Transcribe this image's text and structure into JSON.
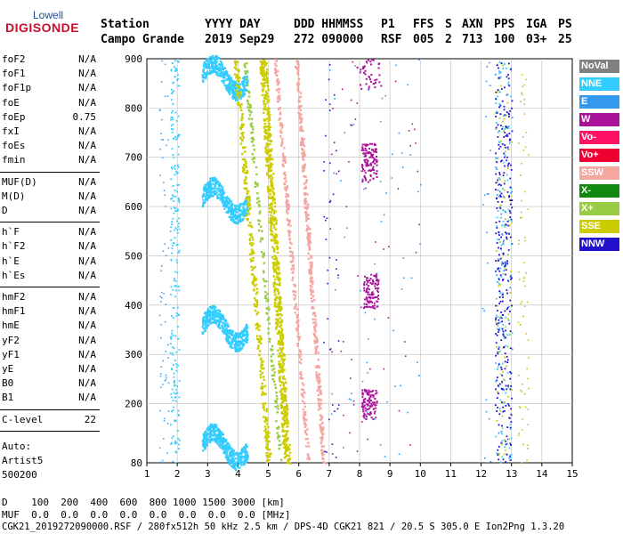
{
  "logo": {
    "top": "Lowell",
    "bottom": "DIGISONDE"
  },
  "header": {
    "row1": [
      {
        "key": "station",
        "text": "Station"
      },
      {
        "key": "date",
        "text": "YYYY DAY"
      },
      {
        "key": "time",
        "text": "DDD HHMMSS"
      },
      {
        "key": "p1",
        "text": "P1"
      },
      {
        "key": "ffs",
        "text": "FFS"
      },
      {
        "key": "s",
        "text": "S"
      },
      {
        "key": "axn",
        "text": "AXN"
      },
      {
        "key": "pps",
        "text": "PPS"
      },
      {
        "key": "iga",
        "text": "IGA"
      },
      {
        "key": "ps",
        "text": "PS"
      }
    ],
    "row2": [
      {
        "key": "station",
        "text": "Campo Grande"
      },
      {
        "key": "date",
        "text": "2019 Sep29"
      },
      {
        "key": "time",
        "text": "272 090000"
      },
      {
        "key": "p1",
        "text": "RSF"
      },
      {
        "key": "ffs",
        "text": "005"
      },
      {
        "key": "s",
        "text": "2"
      },
      {
        "key": "axn",
        "text": "713"
      },
      {
        "key": "pps",
        "text": "100"
      },
      {
        "key": "iga",
        "text": "03+"
      },
      {
        "key": "ps",
        "text": "25"
      }
    ]
  },
  "params": {
    "group1": [
      {
        "label": "foF2",
        "value": "N/A"
      },
      {
        "label": "foF1",
        "value": "N/A"
      },
      {
        "label": "foF1p",
        "value": "N/A"
      },
      {
        "label": "foE",
        "value": "N/A"
      },
      {
        "label": "foEp",
        "value": "0.75"
      },
      {
        "label": "fxI",
        "value": "N/A"
      },
      {
        "label": "foEs",
        "value": "N/A"
      },
      {
        "label": "fmin",
        "value": "N/A"
      }
    ],
    "group2": [
      {
        "label": "MUF(D)",
        "value": "N/A"
      },
      {
        "label": "M(D)",
        "value": "N/A"
      },
      {
        "label": "D",
        "value": "N/A"
      }
    ],
    "group3": [
      {
        "label": "h`F",
        "value": "N/A"
      },
      {
        "label": "h`F2",
        "value": "N/A"
      },
      {
        "label": "h`E",
        "value": "N/A"
      },
      {
        "label": "h`Es",
        "value": "N/A"
      }
    ],
    "group4": [
      {
        "label": "hmF2",
        "value": "N/A"
      },
      {
        "label": "hmF1",
        "value": "N/A"
      },
      {
        "label": "hmE",
        "value": "N/A"
      },
      {
        "label": "yF2",
        "value": "N/A"
      },
      {
        "label": "yF1",
        "value": "N/A"
      },
      {
        "label": "yE",
        "value": "N/A"
      },
      {
        "label": "B0",
        "value": "N/A"
      },
      {
        "label": "B1",
        "value": "N/A"
      }
    ],
    "clevel": {
      "label": "C-level",
      "value": "22"
    },
    "auto": [
      "Auto:",
      "Artist5",
      "500200"
    ]
  },
  "legend": [
    {
      "label": "NoVal",
      "color": "#808080"
    },
    {
      "label": "NNE",
      "color": "#33ccff"
    },
    {
      "label": "E",
      "color": "#3399ee"
    },
    {
      "label": "W",
      "color": "#aa1199"
    },
    {
      "label": "Vo-",
      "color": "#ff1166"
    },
    {
      "label": "Vo+",
      "color": "#ee0033"
    },
    {
      "label": "SSW",
      "color": "#f4a6a0"
    },
    {
      "label": "X-",
      "color": "#118811"
    },
    {
      "label": "X+",
      "color": "#99cc44"
    },
    {
      "label": "SSE",
      "color": "#cccc00"
    },
    {
      "label": "NNW",
      "color": "#2211cc"
    }
  ],
  "axes": {
    "x_ticks": [
      "1",
      "2",
      "3",
      "4",
      "5",
      "6",
      "7",
      "8",
      "9",
      "10",
      "11",
      "12",
      "13",
      "14",
      "15"
    ],
    "y_ticks": [
      "80",
      "200",
      "300",
      "400",
      "500",
      "600",
      "700",
      "800",
      "900"
    ]
  },
  "footer": {
    "line1": "D    100  200  400  600  800 1000 1500 3000 [km]",
    "line2": "MUF  0.0  0.0  0.0  0.0  0.0  0.0  0.0  0.0 [MHz]",
    "line3": "CGK21_2019272090000.RSF / 280fx512h 50 kHz 2.5 km / DPS-4D CGK21 821 / 20.5 S 305.0 E Ion2Png 1.3.20"
  }
}
